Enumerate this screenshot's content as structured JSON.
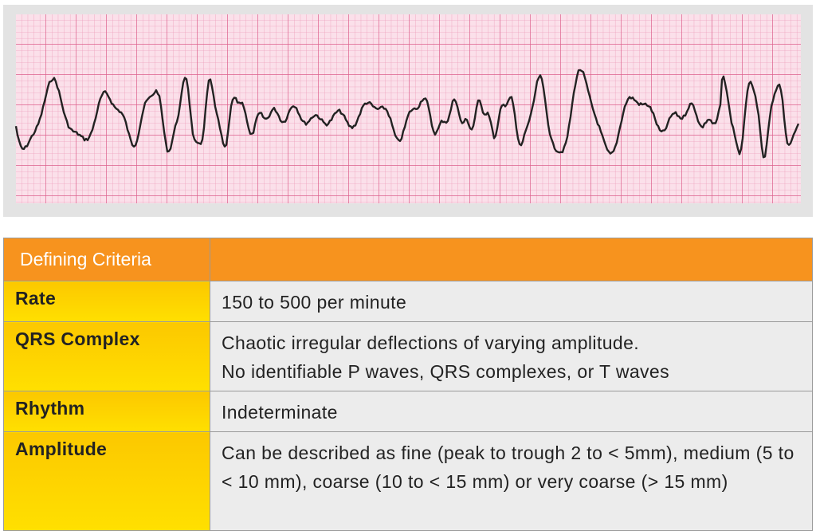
{
  "table": {
    "header": {
      "title": "Defining Criteria"
    },
    "rows": [
      {
        "label": "Rate",
        "lines": [
          "150 to 500 per minute"
        ]
      },
      {
        "label": "QRS Complex",
        "lines": [
          "Chaotic irregular deflections of varying amplitude.",
          "No identifiable P waves, QRS complexes, or T waves"
        ]
      },
      {
        "label": "Rhythm",
        "lines": [
          "Indeterminate"
        ]
      },
      {
        "label": "Amplitude",
        "lines": [
          "Can be described as fine (peak to trough 2 to < 5mm), medium (5 to < 10 mm), coarse (10 to < 15 mm) or very coarse (> 15 mm)"
        ]
      }
    ]
  }
}
